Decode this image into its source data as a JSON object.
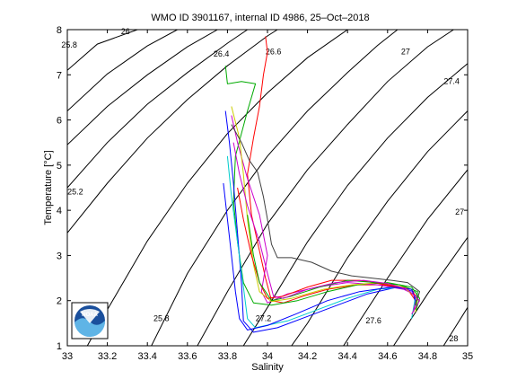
{
  "chart_data": {
    "type": "line",
    "title": "WMO ID 3901167, internal ID 4986, 25–Oct–2018",
    "xlabel": "Salinity",
    "ylabel": "Temperature [°C]",
    "xlim": [
      33,
      35
    ],
    "ylim": [
      1,
      8
    ],
    "x_ticks": [
      "33",
      "33.2",
      "33.4",
      "33.6",
      "33.8",
      "34",
      "34.2",
      "34.4",
      "34.6",
      "34.8",
      "35"
    ],
    "y_ticks": [
      "1",
      "2",
      "3",
      "4",
      "5",
      "6",
      "7",
      "8"
    ],
    "grid": false,
    "logo": {
      "text": "NOAA",
      "colors": [
        "#1a4f9c",
        "#5fb4e6",
        "#ffffff"
      ]
    },
    "density_labels": [
      {
        "text": "25.8",
        "s": 33.01,
        "t": 7.6
      },
      {
        "text": "26",
        "s": 33.29,
        "t": 7.9
      },
      {
        "text": "26.4",
        "s": 33.77,
        "t": 7.4
      },
      {
        "text": "26.6",
        "s": 34.03,
        "t": 7.45
      },
      {
        "text": "27",
        "s": 34.69,
        "t": 7.45
      },
      {
        "text": "27.4",
        "s": 34.92,
        "t": 6.8
      },
      {
        "text": "25.2",
        "s": 33.04,
        "t": 4.35
      },
      {
        "text": "27",
        "s": 34.96,
        "t": 3.9
      },
      {
        "text": "25.8",
        "s": 33.47,
        "t": 1.55
      },
      {
        "text": "27.2",
        "s": 33.98,
        "t": 1.55
      },
      {
        "text": "27.6",
        "s": 34.53,
        "t": 1.5
      },
      {
        "text": "28",
        "s": 34.93,
        "t": 1.1
      }
    ],
    "density_contours": [
      [
        [
          33.0,
          7.1
        ],
        [
          33.15,
          7.68
        ],
        [
          33.35,
          8.0
        ]
      ],
      [
        [
          33.0,
          6.2
        ],
        [
          33.2,
          7.02
        ],
        [
          33.4,
          7.64
        ],
        [
          33.55,
          8.0
        ]
      ],
      [
        [
          33.0,
          5.45
        ],
        [
          33.2,
          6.3
        ],
        [
          33.4,
          7.0
        ],
        [
          33.6,
          7.62
        ],
        [
          33.75,
          8.0
        ]
      ],
      [
        [
          33.0,
          4.5
        ],
        [
          33.2,
          5.5
        ],
        [
          33.4,
          6.35
        ],
        [
          33.6,
          7.05
        ],
        [
          33.8,
          7.7
        ],
        [
          33.9,
          8.0
        ]
      ],
      [
        [
          33.0,
          3.5
        ],
        [
          33.2,
          4.6
        ],
        [
          33.4,
          5.6
        ],
        [
          33.6,
          6.45
        ],
        [
          33.8,
          7.2
        ],
        [
          34.0,
          7.86
        ],
        [
          34.05,
          8.0
        ]
      ],
      [
        [
          33.1,
          1.0
        ],
        [
          33.2,
          1.8
        ],
        [
          33.4,
          3.32
        ],
        [
          33.6,
          4.6
        ],
        [
          33.8,
          5.7
        ],
        [
          34.0,
          6.6
        ],
        [
          34.2,
          7.38
        ],
        [
          34.4,
          8.0
        ]
      ],
      [
        [
          33.42,
          1.0
        ],
        [
          33.6,
          2.6
        ],
        [
          33.8,
          4.0
        ],
        [
          34.0,
          5.2
        ],
        [
          34.2,
          6.2
        ],
        [
          34.4,
          7.05
        ],
        [
          34.55,
          7.65
        ],
        [
          34.65,
          8.0
        ]
      ],
      [
        [
          33.65,
          1.0
        ],
        [
          33.8,
          2.2
        ],
        [
          34.0,
          3.7
        ],
        [
          34.2,
          4.9
        ],
        [
          34.4,
          5.9
        ],
        [
          34.6,
          6.85
        ],
        [
          34.8,
          7.62
        ],
        [
          34.93,
          8.0
        ]
      ],
      [
        [
          33.88,
          1.0
        ],
        [
          34.0,
          1.85
        ],
        [
          34.2,
          3.3
        ],
        [
          34.4,
          4.55
        ],
        [
          34.6,
          5.6
        ],
        [
          34.8,
          6.5
        ],
        [
          35.0,
          7.25
        ]
      ],
      [
        [
          34.12,
          1.0
        ],
        [
          34.2,
          1.5
        ],
        [
          34.4,
          2.95
        ],
        [
          34.6,
          4.2
        ],
        [
          34.8,
          5.3
        ],
        [
          35.0,
          6.2
        ]
      ],
      [
        [
          34.38,
          1.0
        ],
        [
          34.6,
          2.5
        ],
        [
          34.8,
          3.8
        ],
        [
          35.0,
          4.9
        ]
      ],
      [
        [
          34.63,
          1.0
        ],
        [
          34.8,
          2.15
        ],
        [
          35.0,
          3.4
        ]
      ],
      [
        [
          34.88,
          1.0
        ],
        [
          35.0,
          1.85
        ]
      ]
    ],
    "series": [
      {
        "color": "#ff0000",
        "points": [
          [
            33.99,
            7.85
          ],
          [
            34.0,
            7.5
          ],
          [
            33.98,
            7.0
          ],
          [
            33.96,
            6.3
          ],
          [
            33.93,
            5.6
          ],
          [
            33.9,
            4.8
          ],
          [
            33.92,
            3.9
          ],
          [
            33.96,
            3.1
          ],
          [
            33.99,
            2.5
          ],
          [
            34.02,
            2.0
          ],
          [
            34.08,
            1.95
          ],
          [
            34.18,
            2.1
          ],
          [
            34.3,
            2.25
          ],
          [
            34.45,
            2.35
          ],
          [
            34.58,
            2.35
          ],
          [
            34.7,
            2.25
          ],
          [
            34.74,
            2.0
          ],
          [
            34.73,
            1.75
          ]
        ]
      },
      {
        "color": "#00aa00",
        "points": [
          [
            33.79,
            7.2
          ],
          [
            33.8,
            6.8
          ],
          [
            33.87,
            6.85
          ],
          [
            33.94,
            6.8
          ],
          [
            33.9,
            6.2
          ],
          [
            33.84,
            5.2
          ],
          [
            33.83,
            4.2
          ],
          [
            33.85,
            3.3
          ],
          [
            33.88,
            2.4
          ],
          [
            33.93,
            1.95
          ],
          [
            34.02,
            1.9
          ],
          [
            34.15,
            2.0
          ],
          [
            34.3,
            2.2
          ],
          [
            34.45,
            2.35
          ],
          [
            34.6,
            2.4
          ],
          [
            34.72,
            2.3
          ],
          [
            34.76,
            2.05
          ],
          [
            34.74,
            1.75
          ]
        ]
      },
      {
        "color": "#0000ff",
        "points": [
          [
            33.79,
            6.2
          ],
          [
            33.81,
            5.5
          ],
          [
            33.83,
            4.6
          ],
          [
            33.85,
            3.5
          ],
          [
            33.87,
            2.4
          ],
          [
            33.88,
            1.55
          ],
          [
            33.93,
            1.3
          ],
          [
            34.05,
            1.4
          ],
          [
            34.2,
            1.65
          ],
          [
            34.35,
            1.9
          ],
          [
            34.5,
            2.15
          ],
          [
            34.65,
            2.3
          ],
          [
            34.73,
            2.2
          ],
          [
            34.74,
            1.9
          ]
        ]
      },
      {
        "color": "#00cccc",
        "points": [
          [
            33.8,
            5.2
          ],
          [
            33.82,
            4.3
          ],
          [
            33.85,
            3.3
          ],
          [
            33.88,
            2.3
          ],
          [
            33.9,
            1.6
          ],
          [
            33.94,
            1.4
          ],
          [
            34.1,
            1.55
          ],
          [
            34.25,
            1.8
          ],
          [
            34.4,
            2.05
          ],
          [
            34.55,
            2.25
          ],
          [
            34.68,
            2.3
          ],
          [
            34.74,
            2.1
          ],
          [
            34.72,
            1.6
          ]
        ]
      },
      {
        "color": "#cc00cc",
        "points": [
          [
            33.82,
            6.1
          ],
          [
            33.85,
            5.5
          ],
          [
            33.9,
            4.7
          ],
          [
            33.96,
            3.9
          ],
          [
            34.0,
            3.0
          ],
          [
            33.97,
            2.2
          ],
          [
            34.0,
            1.95
          ],
          [
            34.1,
            2.15
          ],
          [
            34.25,
            2.3
          ],
          [
            34.4,
            2.4
          ],
          [
            34.55,
            2.35
          ],
          [
            34.68,
            2.25
          ],
          [
            34.75,
            2.1
          ],
          [
            34.73,
            1.8
          ]
        ]
      },
      {
        "color": "#cccc00",
        "points": [
          [
            33.82,
            6.3
          ],
          [
            33.86,
            5.6
          ],
          [
            33.88,
            4.8
          ],
          [
            33.9,
            3.8
          ],
          [
            33.93,
            2.8
          ],
          [
            33.96,
            2.2
          ],
          [
            34.02,
            1.98
          ],
          [
            34.12,
            2.05
          ],
          [
            34.28,
            2.25
          ],
          [
            34.42,
            2.35
          ],
          [
            34.56,
            2.4
          ],
          [
            34.68,
            2.3
          ],
          [
            34.75,
            2.05
          ],
          [
            34.74,
            1.75
          ]
        ]
      },
      {
        "color": "#404040",
        "points": [
          [
            33.82,
            5.9
          ],
          [
            33.87,
            5.5
          ],
          [
            33.91,
            5.1
          ],
          [
            33.95,
            4.85
          ],
          [
            33.98,
            4.3
          ],
          [
            34.0,
            3.8
          ],
          [
            34.02,
            3.25
          ],
          [
            34.05,
            2.95
          ],
          [
            34.12,
            2.95
          ],
          [
            34.22,
            2.85
          ],
          [
            34.32,
            2.65
          ],
          [
            34.42,
            2.55
          ],
          [
            34.52,
            2.5
          ],
          [
            34.62,
            2.45
          ],
          [
            34.7,
            2.4
          ],
          [
            34.76,
            2.2
          ],
          [
            34.74,
            1.9
          ]
        ]
      },
      {
        "color": "#ff0000",
        "points": [
          [
            33.85,
            4.5
          ],
          [
            33.88,
            3.8
          ],
          [
            33.92,
            3.0
          ],
          [
            33.96,
            2.4
          ],
          [
            34.0,
            2.05
          ],
          [
            34.08,
            2.1
          ],
          [
            34.2,
            2.3
          ],
          [
            34.32,
            2.45
          ],
          [
            34.46,
            2.45
          ],
          [
            34.6,
            2.35
          ],
          [
            34.72,
            2.25
          ],
          [
            34.75,
            2.0
          ]
        ]
      },
      {
        "color": "#00aa00",
        "points": [
          [
            33.9,
            3.9
          ],
          [
            33.93,
            3.0
          ],
          [
            33.96,
            2.4
          ],
          [
            34.02,
            2.0
          ],
          [
            34.12,
            2.1
          ],
          [
            34.26,
            2.3
          ],
          [
            34.4,
            2.45
          ],
          [
            34.54,
            2.4
          ],
          [
            34.66,
            2.35
          ],
          [
            34.75,
            2.2
          ],
          [
            34.74,
            1.8
          ]
        ]
      },
      {
        "color": "#0000ff",
        "points": [
          [
            33.78,
            4.6
          ],
          [
            33.8,
            3.8
          ],
          [
            33.82,
            3.0
          ],
          [
            33.84,
            2.2
          ],
          [
            33.86,
            1.6
          ],
          [
            33.9,
            1.35
          ],
          [
            34.0,
            1.45
          ],
          [
            34.14,
            1.7
          ],
          [
            34.3,
            2.0
          ],
          [
            34.46,
            2.2
          ],
          [
            34.62,
            2.3
          ],
          [
            34.72,
            2.25
          ],
          [
            34.74,
            2.0
          ]
        ]
      },
      {
        "color": "#cc00cc",
        "points": [
          [
            33.83,
            5.5
          ],
          [
            33.86,
            4.8
          ],
          [
            33.9,
            4.1
          ],
          [
            33.96,
            3.3
          ],
          [
            34.0,
            2.6
          ],
          [
            34.03,
            2.1
          ],
          [
            34.08,
            2.05
          ],
          [
            34.2,
            2.25
          ],
          [
            34.34,
            2.4
          ],
          [
            34.48,
            2.45
          ],
          [
            34.6,
            2.38
          ],
          [
            34.7,
            2.25
          ],
          [
            34.76,
            2.0
          ],
          [
            34.72,
            1.7
          ]
        ]
      }
    ]
  }
}
